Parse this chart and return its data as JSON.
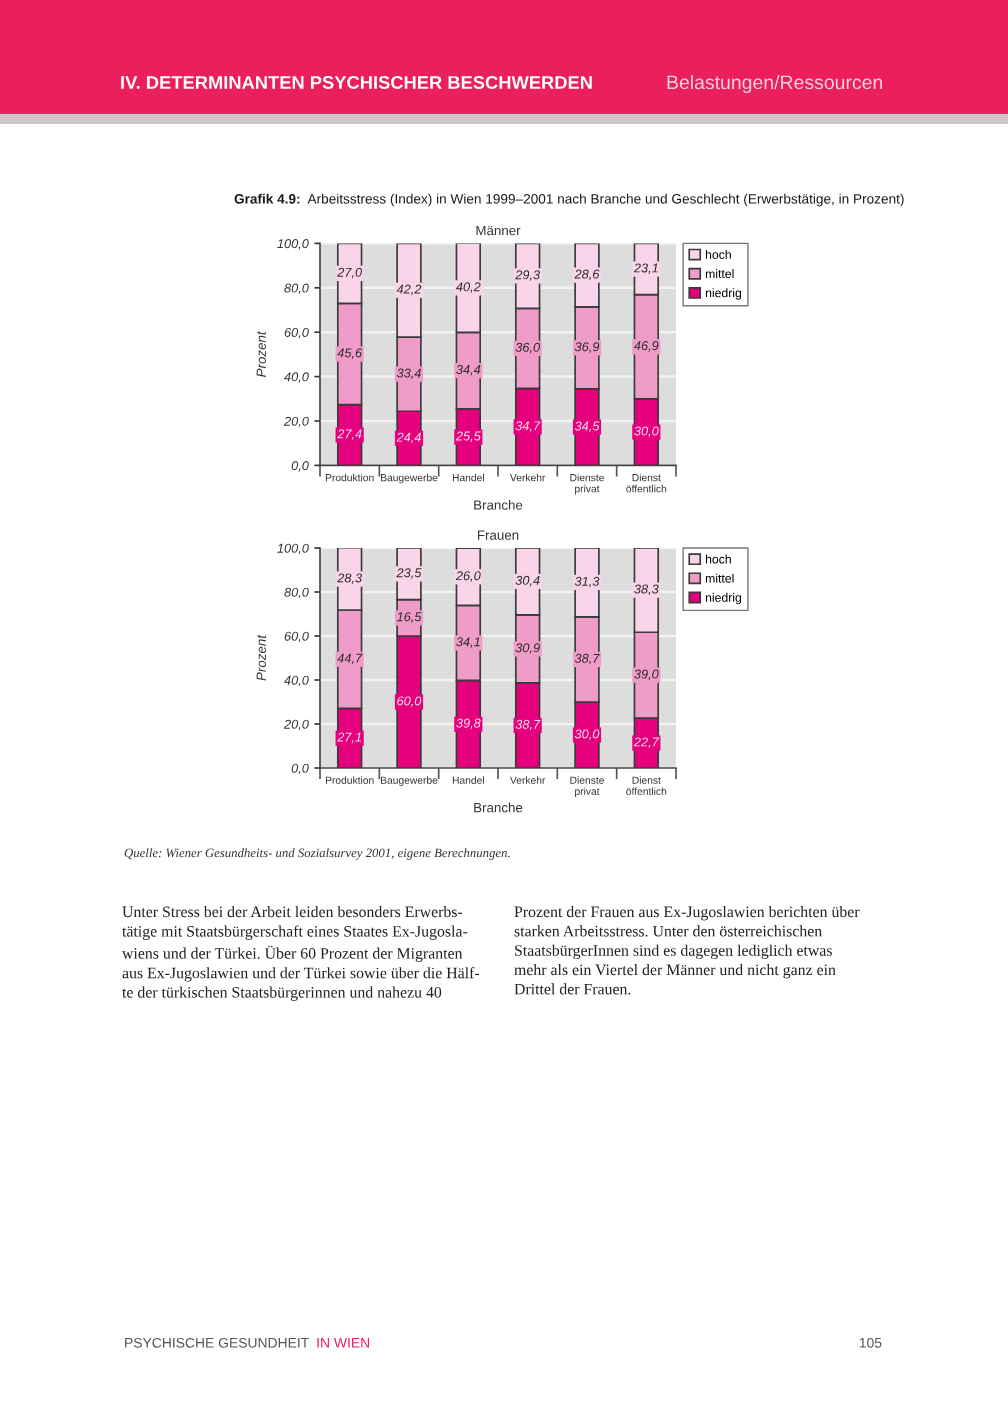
{
  "chart_data": [
    {
      "type": "bar",
      "stacked": true,
      "title": "Männer",
      "xlabel": "Branche",
      "ylabel": "Prozent",
      "categories": [
        "Produktion",
        "Baugewerbe",
        "Handel",
        "Verkehr",
        "Dienste\nprivat",
        "Dienst\nöffentlich"
      ],
      "series": [
        {
          "name": "niedrig",
          "color": "#e5007e",
          "values": [
            27.4,
            24.4,
            25.5,
            34.7,
            34.5,
            30.0
          ],
          "value_labels": [
            "27,4",
            "24,4",
            "25,5",
            "34,7",
            "34,5",
            "30,0"
          ]
        },
        {
          "name": "mittel",
          "color": "#f09cc8",
          "values": [
            45.6,
            33.4,
            34.4,
            36.0,
            36.9,
            46.9
          ],
          "value_labels": [
            "45,6",
            "33,4",
            "34,4",
            "36,0",
            "36,9",
            "46,9"
          ]
        },
        {
          "name": "hoch",
          "color": "#fad4e8",
          "values": [
            27.0,
            42.2,
            40.2,
            29.3,
            28.6,
            23.1
          ],
          "value_labels": [
            "27,0",
            "42,2",
            "40,2",
            "29,3",
            "28,6",
            "23,1"
          ]
        }
      ],
      "ylim": [
        0,
        100
      ],
      "yticks": [
        {
          "value": 0,
          "label": "0,0"
        },
        {
          "value": 20,
          "label": "20,0"
        },
        {
          "value": 40,
          "label": "40,0"
        },
        {
          "value": 60,
          "label": "60,0"
        },
        {
          "value": 80,
          "label": "80,0"
        },
        {
          "value": 100,
          "label": "100,0"
        }
      ],
      "grid": "y",
      "legend": "right",
      "annotations": [
        "IV. DETERMINANTEN PSYCHISCHER BESCHWERDEN",
        "Belastungen/Ressourcen",
        "Grafik 4.9:",
        "Arbeitsstress (Index) in Wien 1999–2001 nach Branche und Geschlecht (Erwerbstätige, in Prozent)"
      ]
    },
    {
      "type": "bar",
      "stacked": true,
      "title": "Frauen",
      "xlabel": "Branche",
      "ylabel": "Prozent",
      "categories": [
        "Produktion",
        "Baugewerbe",
        "Handel",
        "Verkehr",
        "Dienste\nprivat",
        "Dienst\nöffentlich"
      ],
      "series": [
        {
          "name": "niedrig",
          "color": "#e5007e",
          "values": [
            27.1,
            60.0,
            39.8,
            38.7,
            30.0,
            22.7
          ],
          "value_labels": [
            "27,1",
            "60,0",
            "39,8",
            "38,7",
            "30,0",
            "22,7"
          ]
        },
        {
          "name": "mittel",
          "color": "#f09cc8",
          "values": [
            44.7,
            16.5,
            34.1,
            30.9,
            38.7,
            39.0
          ],
          "value_labels": [
            "44,7",
            "16,5",
            "34,1",
            "30,9",
            "38,7",
            "39,0"
          ]
        },
        {
          "name": "hoch",
          "color": "#fad4e8",
          "values": [
            28.3,
            23.5,
            26.0,
            30.4,
            31.3,
            38.3
          ],
          "value_labels": [
            "28,3",
            "23,5",
            "26,0",
            "30,4",
            "31,3",
            "38,3"
          ]
        }
      ],
      "ylim": [
        0,
        100
      ],
      "yticks": [
        {
          "value": 0,
          "label": "0,0"
        },
        {
          "value": 20,
          "label": "20,0"
        },
        {
          "value": 40,
          "label": "40,0"
        },
        {
          "value": 60,
          "label": "60,0"
        },
        {
          "value": 80,
          "label": "80,0"
        },
        {
          "value": 100,
          "label": "100,0"
        }
      ],
      "grid": "y",
      "legend": "right",
      "annotations": [
        "Quelle: Wiener Gesundheits- und Sozialsurvey 2001, eigene Berechnungen.",
        "Unter Stress bei der Arbeit leiden besonders Erwerbs-\ntätige mit Staatsbürgerschaft eines Staates Ex-Jugosla-\nwiens und der Türkei. Über 60 Prozent der Migranten\naus Ex-Jugoslawien und der Türkei sowie über die Hälf-\nte der türkischen Staatsbürgerinnen und nahezu 40",
        "Prozent der Frauen aus Ex-Jugoslawien berichten über\nstarken Arbeitsstress. Unter den österreichischen\nStaatsbürgerInnen sind es dagegen lediglich etwas\nmehr als ein Viertel der Männer und nicht ganz ein\nDrittel der Frauen.",
        "PSYCHISCHE GESUNDHEIT",
        "IN WIEN",
        "105"
      ]
    }
  ]
}
